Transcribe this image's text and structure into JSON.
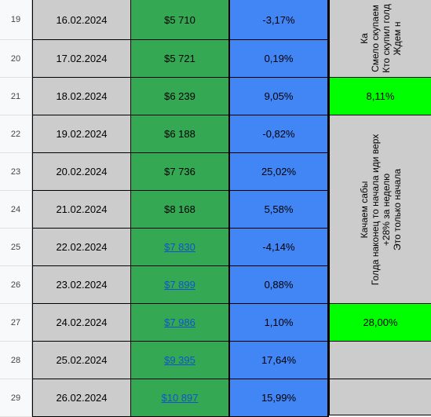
{
  "rows": [
    {
      "num": "19",
      "date": "16.02.2024",
      "price": "$5 710",
      "pct": "-3,17%",
      "link": false
    },
    {
      "num": "20",
      "date": "17.02.2024",
      "price": "$5 721",
      "pct": "0,19%",
      "link": false
    },
    {
      "num": "21",
      "date": "18.02.2024",
      "price": "$6 239",
      "pct": "9,05%",
      "link": false
    },
    {
      "num": "22",
      "date": "19.02.2024",
      "price": "$6 188",
      "pct": "-0,82%",
      "link": false
    },
    {
      "num": "23",
      "date": "20.02.2024",
      "price": "$7 736",
      "pct": "25,02%",
      "link": false
    },
    {
      "num": "24",
      "date": "21.02.2024",
      "price": "$8 168",
      "pct": "5,58%",
      "link": false
    },
    {
      "num": "25",
      "date": "22.02.2024",
      "price": "$7 830",
      "pct": "-4,14%",
      "link": true
    },
    {
      "num": "26",
      "date": "23.02.2024",
      "price": "$7 899",
      "pct": "0,88%",
      "link": true
    },
    {
      "num": "27",
      "date": "24.02.2024",
      "price": "$7 986",
      "pct": "1,10%",
      "link": true
    },
    {
      "num": "28",
      "date": "25.02.2024",
      "price": "$9 395",
      "pct": "17,64%",
      "link": true
    },
    {
      "num": "29",
      "date": "26.02.2024",
      "price": "$10 897",
      "pct": "15,99%",
      "link": true
    }
  ],
  "notes": {
    "block1_lines": [
      "Ка",
      "Смело скупаем",
      "Кто скупил голд",
      "Ждем н"
    ],
    "green1": "8,11%",
    "block2_lines": [
      "Качаем сабы",
      "Голда наконец то начала иди верх",
      "+28% за неделю",
      "Это только начала"
    ],
    "green2": "28,00%"
  },
  "colors": {
    "date_bg": "#cccccc",
    "price_bg": "#34a853",
    "pct_bg": "#4285f4",
    "note_green": "#00ff00",
    "link": "#1155cc"
  }
}
